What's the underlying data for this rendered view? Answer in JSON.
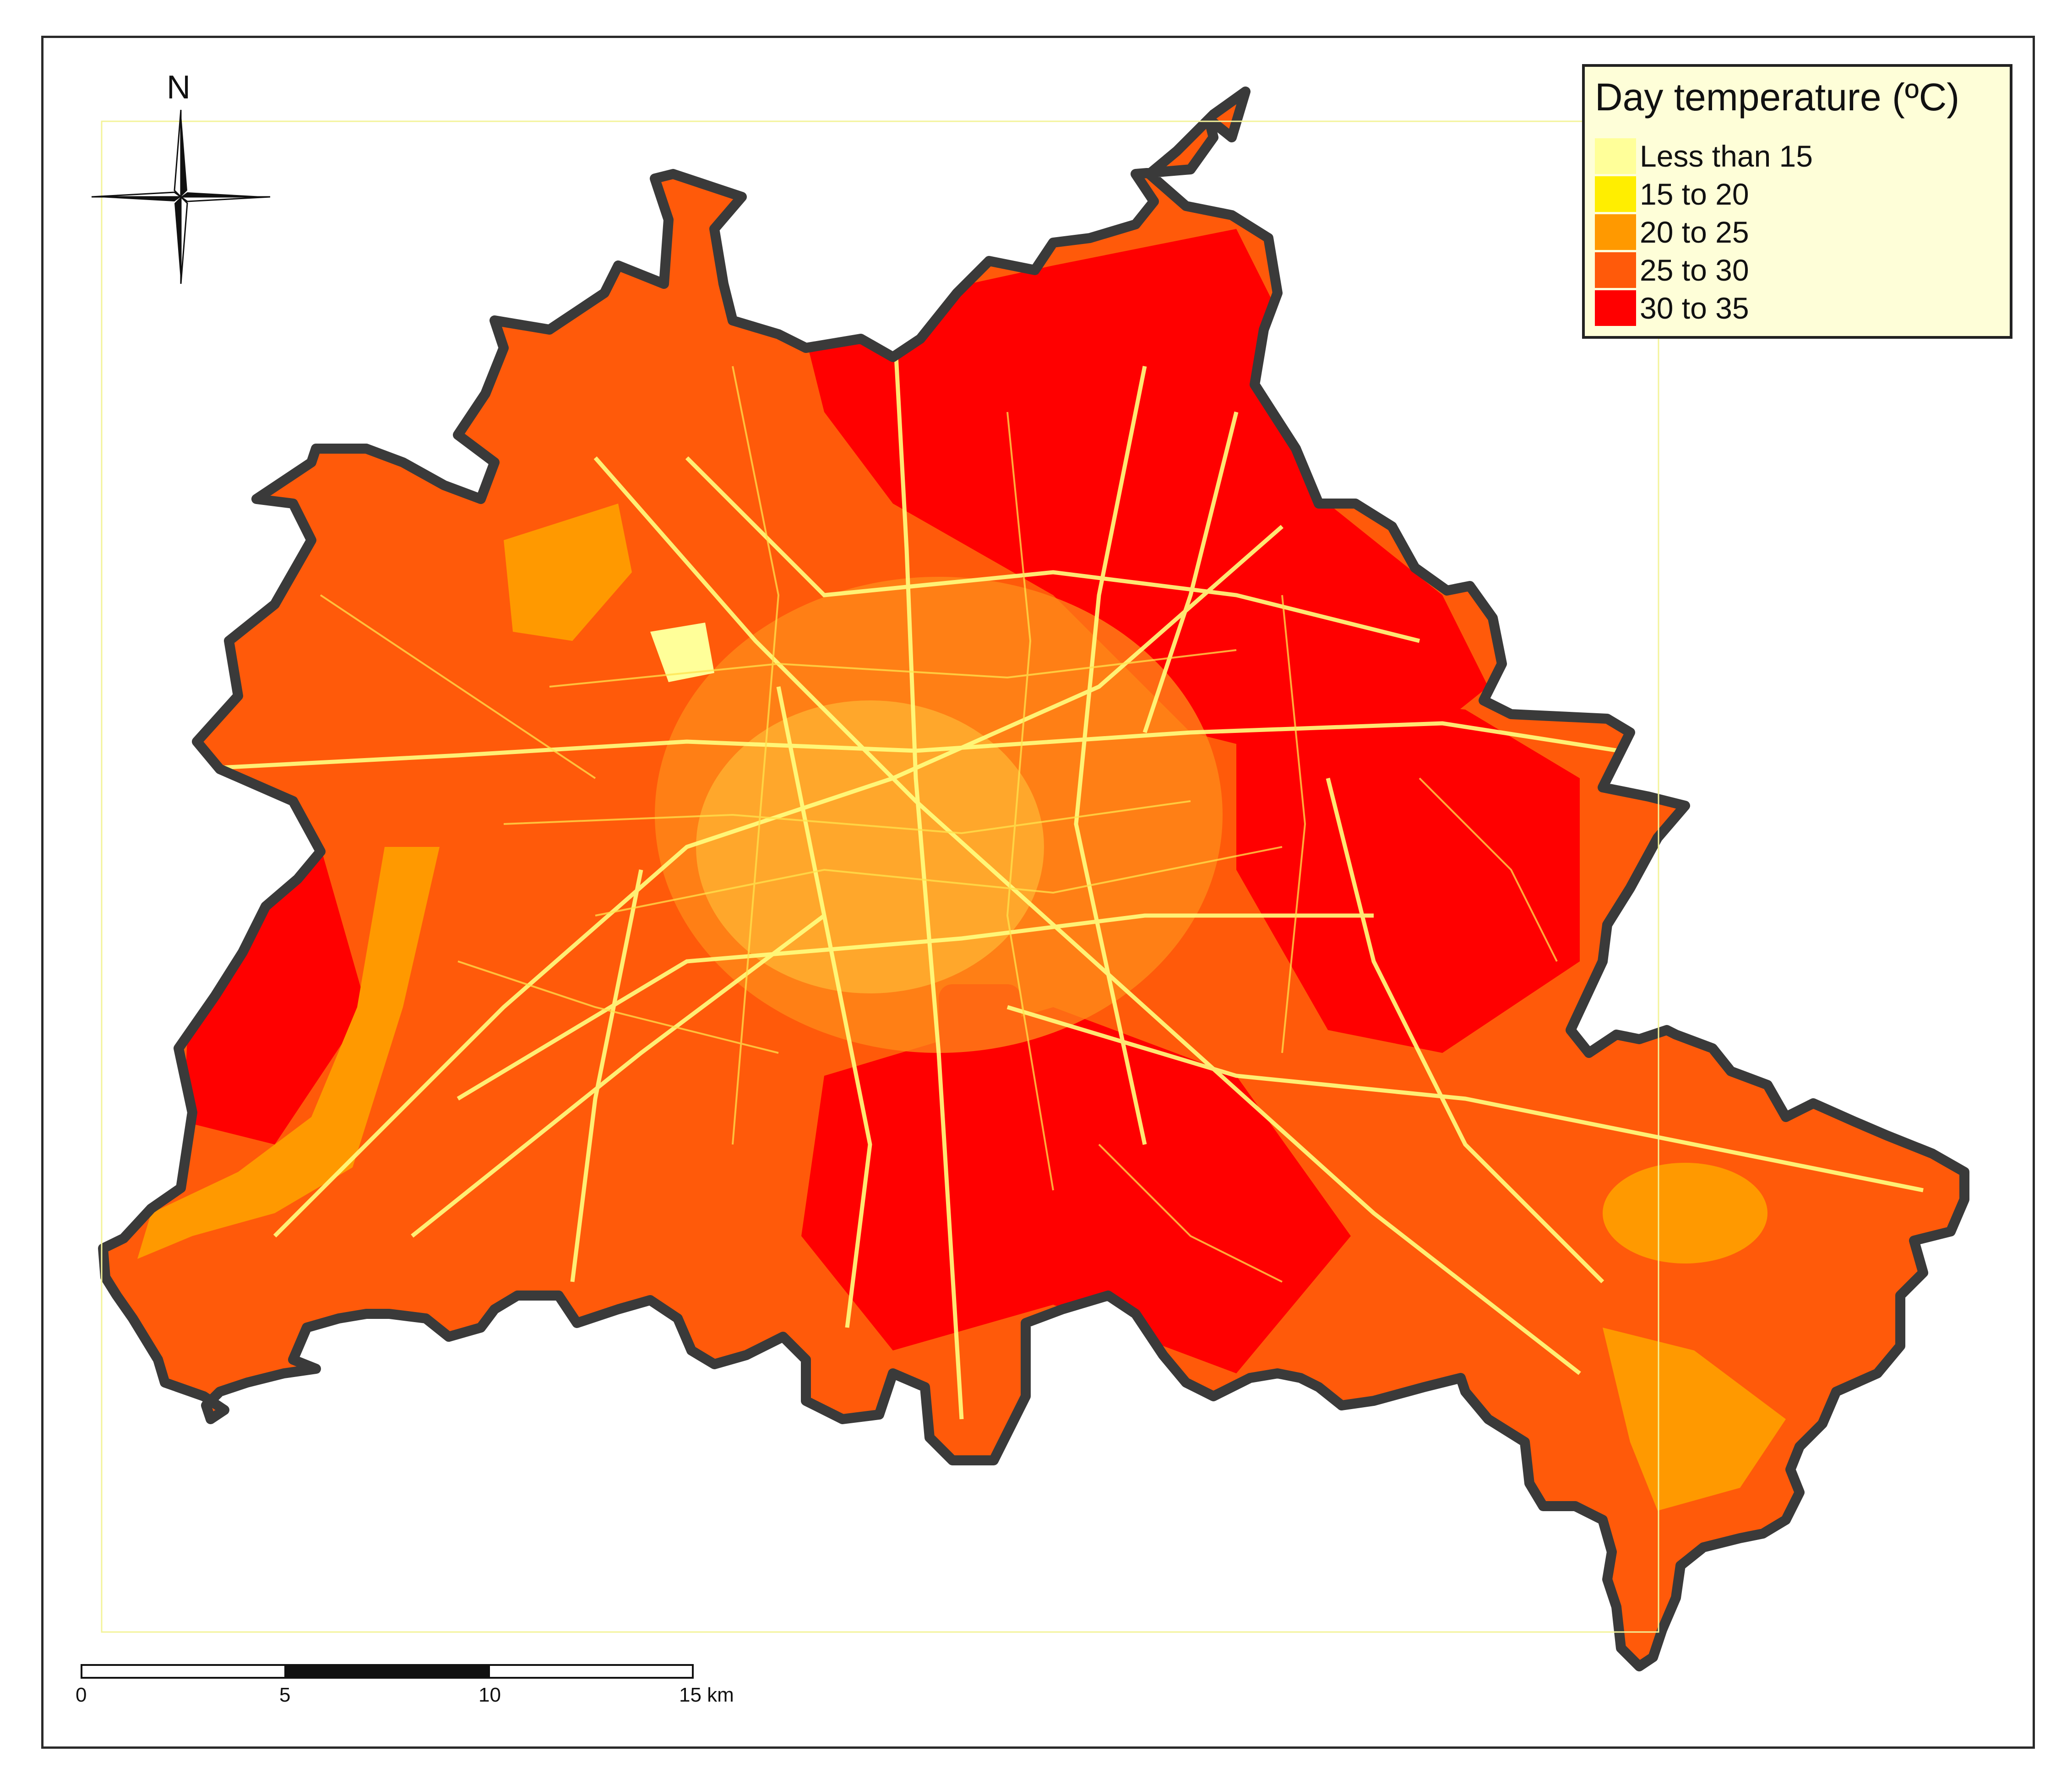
{
  "legend": {
    "title": "Day temperature (ºC)",
    "classes": [
      {
        "label": "Less than 15",
        "color": "#ffff99"
      },
      {
        "label": "15 to 20",
        "color": "#ffee00"
      },
      {
        "label": "20 to 25",
        "color": "#ff9900"
      },
      {
        "label": "25 to 30",
        "color": "#ff5a0a"
      },
      {
        "label": "30 to 35",
        "color": "#ff0000"
      }
    ]
  },
  "north_arrow": {
    "label": "N",
    "icon": "north-arrow-icon"
  },
  "scale_bar": {
    "ticks": [
      "0",
      "5",
      "10",
      "15 km"
    ]
  },
  "colors": {
    "boundary": "#3a3a3a",
    "roads": "#ffff80",
    "frame": "#2a2a2a"
  }
}
